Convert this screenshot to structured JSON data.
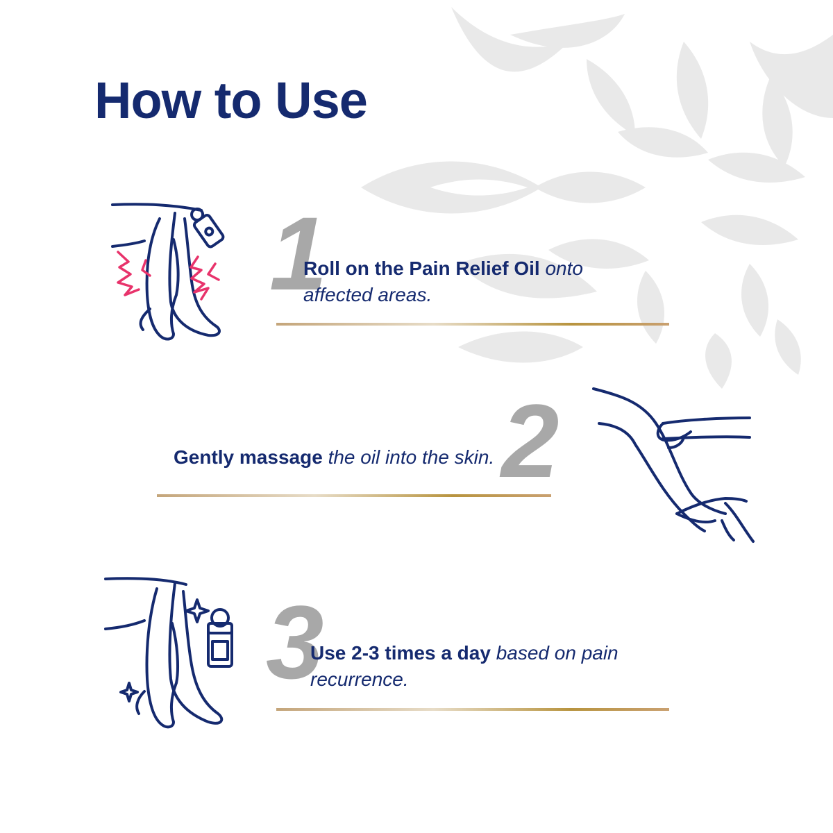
{
  "title": "How to Use",
  "colors": {
    "navy": "#152a6f",
    "pink": "#e8336b",
    "number_gray": "#a8a8a8",
    "flower_gray": "#e9e9e9",
    "gold": "#b8943f",
    "gold_light": "#e7dcc7"
  },
  "steps": [
    {
      "number": "1",
      "bold": "Roll on the Pain Relief Oil",
      "italic": "onto affected areas.",
      "illustration": "legs-pain-roll-on-icon"
    },
    {
      "number": "2",
      "bold": "Gently massage",
      "italic": "the oil into the skin.",
      "illustration": "hands-massaging-leg-icon"
    },
    {
      "number": "3",
      "bold": "Use 2-3 times a day",
      "italic": "based on pain recurrence.",
      "illustration": "legs-sparkle-bottle-icon"
    }
  ]
}
